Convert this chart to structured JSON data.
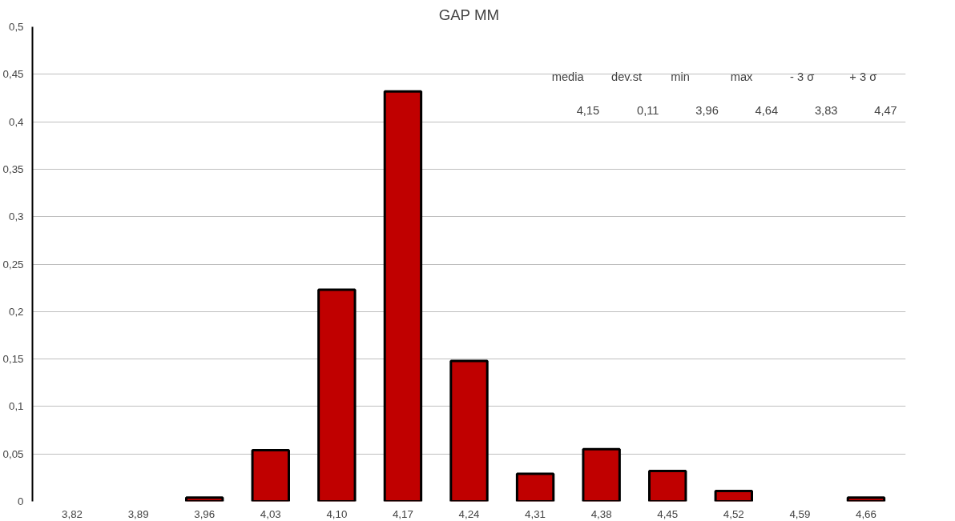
{
  "chart_data": {
    "type": "bar",
    "title": "GAP MM",
    "categories": [
      "3,82",
      "3,89",
      "3,96",
      "4,03",
      "4,10",
      "4,17",
      "4,24",
      "4,31",
      "4,38",
      "4,45",
      "4,52",
      "4,59",
      "4,66"
    ],
    "values": [
      0,
      0,
      0.004,
      0.054,
      0.223,
      0.432,
      0.148,
      0.029,
      0.055,
      0.032,
      0.011,
      0,
      0.004
    ],
    "color": "#c00000",
    "ylim": [
      0,
      0.5
    ],
    "yticks": [
      {
        "value": 0,
        "label": "0"
      },
      {
        "value": 0.05,
        "label": "0,05"
      },
      {
        "value": 0.1,
        "label": "0,1"
      },
      {
        "value": 0.15,
        "label": "0,15"
      },
      {
        "value": 0.2,
        "label": "0,2"
      },
      {
        "value": 0.25,
        "label": "0,25"
      },
      {
        "value": 0.3,
        "label": "0,3"
      },
      {
        "value": 0.35,
        "label": "0,35"
      },
      {
        "value": 0.4,
        "label": "0,4"
      },
      {
        "value": 0.45,
        "label": "0,45"
      },
      {
        "value": 0.5,
        "label": "0,5"
      }
    ],
    "grid": "y",
    "annotations": [
      "media",
      "dev.st",
      "min",
      "max",
      "- 3 σ",
      "+ 3 σ",
      "4,15",
      "0,11",
      "3,96",
      "4,64",
      "3,83",
      "4,47"
    ]
  }
}
